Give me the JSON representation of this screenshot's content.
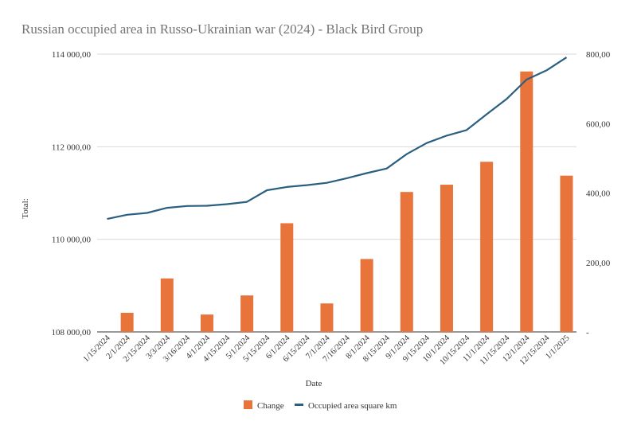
{
  "chart_data": {
    "type": "bar+line",
    "title": "Russian occupied area in Russo-Ukrainian war (2024) - Black Bird Group",
    "xlabel": "Date",
    "ylabel_left": "Total:",
    "ylabel_right": "",
    "categories": [
      "1/15/2024",
      "2/1/2024",
      "2/15/2024",
      "3/3/2024",
      "3/16/2024",
      "4/1/2024",
      "4/15/2024",
      "5/1/2024",
      "5/15/2024",
      "6/1/2024",
      "6/15/2024",
      "7/1/2024",
      "7/16/2024",
      "8/1/2024",
      "8/15/2024",
      "9/1/2024",
      "9/15/2024",
      "10/1/2024",
      "10/15/2024",
      "11/1/2024",
      "11/15/2024",
      "12/1/2024",
      "12/15/2024",
      "1/1/2025"
    ],
    "left_axis": {
      "min": 108000,
      "max": 114000,
      "ticks": [
        108000,
        110000,
        112000,
        114000
      ],
      "tick_labels": [
        "108 000,00",
        "110 000,00",
        "112 000,00",
        "114 000,00"
      ]
    },
    "right_axis": {
      "min": 0,
      "max": 800,
      "ticks": [
        0,
        200,
        400,
        600,
        800
      ],
      "tick_labels": [
        "-",
        "200,00",
        "400,00",
        "600,00",
        "800,00"
      ]
    },
    "series": [
      {
        "name": "Change",
        "type": "bar",
        "axis": "right",
        "color": "#e8743b",
        "values": [
          null,
          55,
          null,
          154,
          null,
          50,
          null,
          105,
          null,
          313,
          null,
          82,
          null,
          210,
          null,
          403,
          null,
          424,
          null,
          490,
          null,
          750,
          null,
          450
        ]
      },
      {
        "name": "Occupied area square km",
        "type": "line",
        "axis": "left",
        "color": "#2a5f7f",
        "values": [
          110440,
          110530,
          110570,
          110680,
          110720,
          110725,
          110760,
          110810,
          111060,
          111130,
          111170,
          111220,
          111320,
          111430,
          111530,
          111840,
          112080,
          112240,
          112360,
          112700,
          113030,
          113450,
          113650,
          113930
        ]
      }
    ],
    "legend": {
      "placement": "bottom",
      "items": [
        "Change",
        "Occupied area square km"
      ]
    },
    "grid": true
  }
}
